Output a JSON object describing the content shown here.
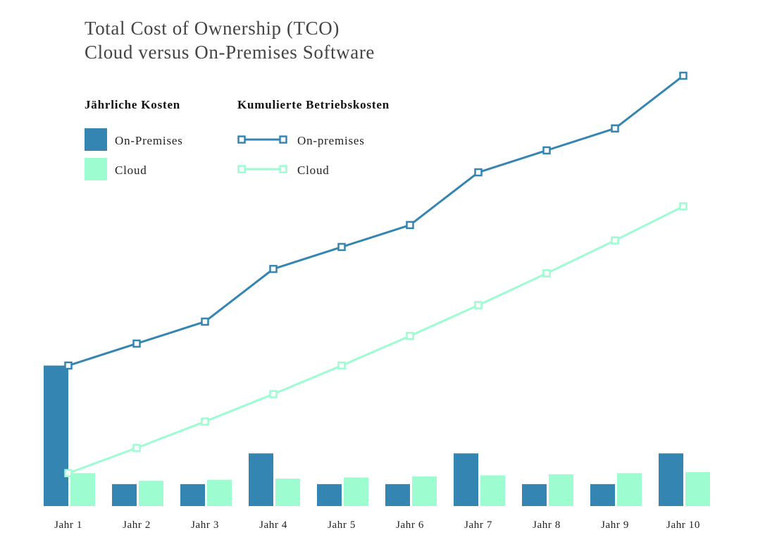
{
  "chart_data": {
    "type": "bar+line",
    "title": "Total Cost of Ownership (TCO)",
    "subtitle": "Cloud versus On-Premises Software",
    "categories": [
      "Jahr 1",
      "Jahr 2",
      "Jahr 3",
      "Jahr 4",
      "Jahr 5",
      "Jahr 6",
      "Jahr 7",
      "Jahr 8",
      "Jahr 9",
      "Jahr 10"
    ],
    "annual_costs": {
      "heading": "Jährliche Kosten",
      "series": [
        {
          "name": "On-Premises",
          "color": "#3585b3",
          "values": [
            64,
            10,
            10,
            24,
            10,
            10,
            24,
            10,
            10,
            24
          ]
        },
        {
          "name": "Cloud",
          "color": "#9dfcd0",
          "values": [
            15,
            11.5,
            12,
            12.5,
            13,
            13.5,
            14,
            14.5,
            15,
            15.5
          ]
        }
      ]
    },
    "cumulative_costs": {
      "heading": "Kumulierte Betriebskosten",
      "series": [
        {
          "name": "On-premises",
          "color": "#3585b3",
          "values": [
            64,
            74,
            84,
            108,
            118,
            128,
            152,
            162,
            172,
            196
          ]
        },
        {
          "name": "Cloud",
          "color": "#9dfcd0",
          "values": [
            15,
            26.5,
            38.5,
            51,
            64,
            77.5,
            91.5,
            106,
            121,
            136.5
          ]
        }
      ]
    },
    "ylim": [
      0,
      200
    ],
    "y_axis_visible": false,
    "grid": false,
    "legend_position": "top-left"
  }
}
